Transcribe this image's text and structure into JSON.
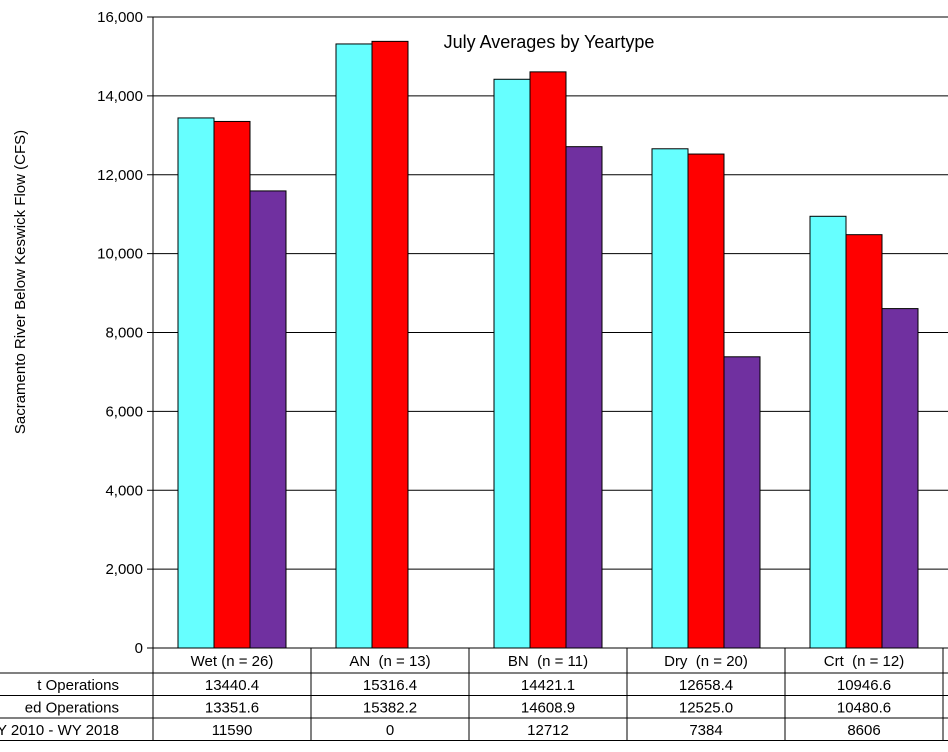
{
  "chart_data": {
    "type": "bar",
    "title": "July Averages by Yeartype",
    "ylabel": "Sacramento River Below Keswick Flow (CFS)",
    "xlabel": "",
    "ylim": [
      0,
      16000
    ],
    "yticks": [
      0,
      2000,
      4000,
      6000,
      8000,
      10000,
      12000,
      14000,
      16000
    ],
    "ytick_labels": [
      "0",
      "2,000",
      "4,000",
      "6,000",
      "8,000",
      "10,000",
      "12,000",
      "14,000",
      "16,000"
    ],
    "grid": true,
    "categories": [
      "Wet (n = 26)",
      "AN  (n = 13)",
      "BN  (n = 11)",
      "Dry  (n = 20)",
      "Crt  (n = 12)"
    ],
    "series": [
      {
        "name": "t Operations",
        "color": "#66ffff",
        "values": [
          13440.4,
          15316.4,
          14421.1,
          12658.4,
          10946.6
        ],
        "value_labels": [
          "13440.4",
          "15316.4",
          "14421.1",
          "12658.4",
          "10946.6"
        ]
      },
      {
        "name": "ed Operations",
        "color": "#ff0000",
        "values": [
          13351.6,
          15382.2,
          14608.9,
          12525.0,
          10480.6
        ],
        "value_labels": [
          "13351.6",
          "15382.2",
          "14608.9",
          "12525.0",
          "10480.6"
        ]
      },
      {
        "name": "Y 2010 - WY 2018",
        "color": "#7030a0",
        "values": [
          11590,
          0,
          12712,
          7384,
          8606
        ],
        "value_labels": [
          "11590",
          "0",
          "12712",
          "7384",
          "8606"
        ]
      }
    ]
  }
}
